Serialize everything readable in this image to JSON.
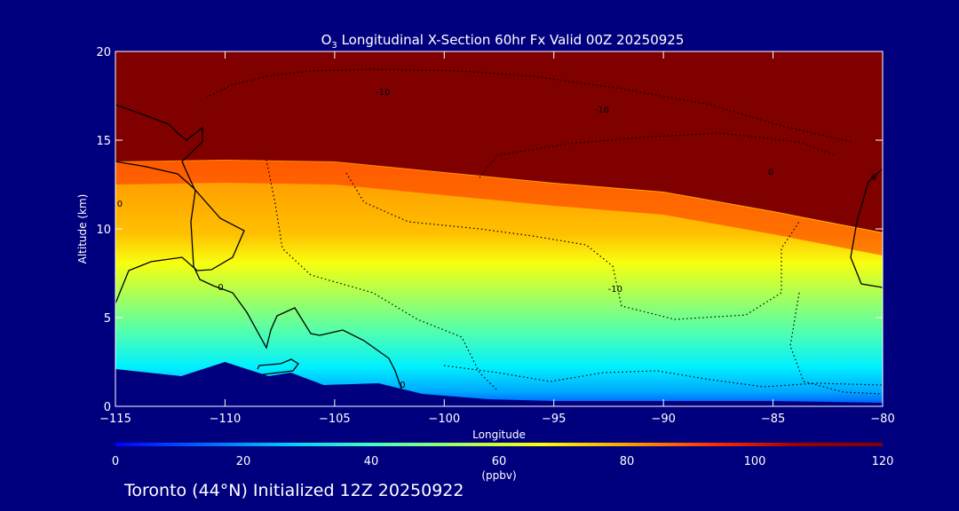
{
  "chart_data": {
    "type": "heatmap",
    "title": "O3 Longitudinal X-Section 60hr  Fx Valid 00Z 20250925",
    "title_parts": {
      "prefix": "O",
      "subscript": "3",
      "rest": " Longitudinal X-Section 60hr  Fx Valid 00Z 20250925"
    },
    "xlabel": "Longitude",
    "ylabel": "Altitude (km)",
    "xlim": [
      -115,
      -80
    ],
    "ylim": [
      0,
      20
    ],
    "x_ticks": [
      "-115",
      "-110",
      "-105",
      "-100",
      "-95",
      "-90",
      "-85",
      "-80"
    ],
    "y_ticks": [
      "0",
      "5",
      "10",
      "15",
      "20"
    ],
    "x_tick_values": [
      -115,
      -110,
      -105,
      -100,
      -95,
      -90,
      -85,
      -80
    ],
    "y_tick_values": [
      0,
      5,
      10,
      15,
      20
    ],
    "colorbar": {
      "range": [
        0,
        120
      ],
      "ticks": [
        "0",
        "20",
        "40",
        "60",
        "80",
        "100",
        "120"
      ],
      "tick_values": [
        0,
        20,
        40,
        60,
        80,
        100,
        120
      ],
      "unit": "(ppbv)",
      "colors": [
        "#0000ff",
        "#0060ff",
        "#00c8ff",
        "#40ffc0",
        "#a0ff60",
        "#ffff00",
        "#ffa000",
        "#ff3000",
        "#a00000",
        "#800000"
      ]
    },
    "tropopause_km": [
      {
        "lon": -115,
        "alt": 13.8
      },
      {
        "lon": -110,
        "alt": 13.9
      },
      {
        "lon": -105,
        "alt": 13.8
      },
      {
        "lon": -100,
        "alt": 13.2
      },
      {
        "lon": -95,
        "alt": 12.6
      },
      {
        "lon": -90,
        "alt": 12.1
      },
      {
        "lon": -85,
        "alt": 11.0
      },
      {
        "lon": -80,
        "alt": 9.8
      }
    ],
    "terrain_km": [
      {
        "lon": -115,
        "alt": 2.1
      },
      {
        "lon": -112,
        "alt": 1.7
      },
      {
        "lon": -110,
        "alt": 2.5
      },
      {
        "lon": -108,
        "alt": 1.7
      },
      {
        "lon": -107,
        "alt": 1.9
      },
      {
        "lon": -105.5,
        "alt": 1.2
      },
      {
        "lon": -103,
        "alt": 1.3
      },
      {
        "lon": -101,
        "alt": 0.7
      },
      {
        "lon": -98,
        "alt": 0.4
      },
      {
        "lon": -95,
        "alt": 0.3
      },
      {
        "lon": -90,
        "alt": 0.3
      },
      {
        "lon": -85,
        "alt": 0.3
      },
      {
        "lon": -80,
        "alt": 0.2
      }
    ],
    "contour_labels": [
      {
        "text": "-10",
        "lon": -102.8,
        "alt": 17.7
      },
      {
        "text": "-10",
        "lon": -92.8,
        "alt": 16.7
      },
      {
        "text": "-10",
        "lon": -92.2,
        "alt": 6.6
      },
      {
        "text": "0",
        "lon": -85.1,
        "alt": 13.2
      },
      {
        "text": "0",
        "lon": -80.4,
        "alt": 12.9
      },
      {
        "text": "0",
        "lon": -110.2,
        "alt": 6.7
      },
      {
        "text": "0",
        "lon": -114.8,
        "alt": 11.4
      },
      {
        "text": "0",
        "lon": -101.9,
        "alt": 1.2
      }
    ]
  },
  "footer": {
    "text": "Toronto (44°N) Initialized 12Z 20250922"
  }
}
